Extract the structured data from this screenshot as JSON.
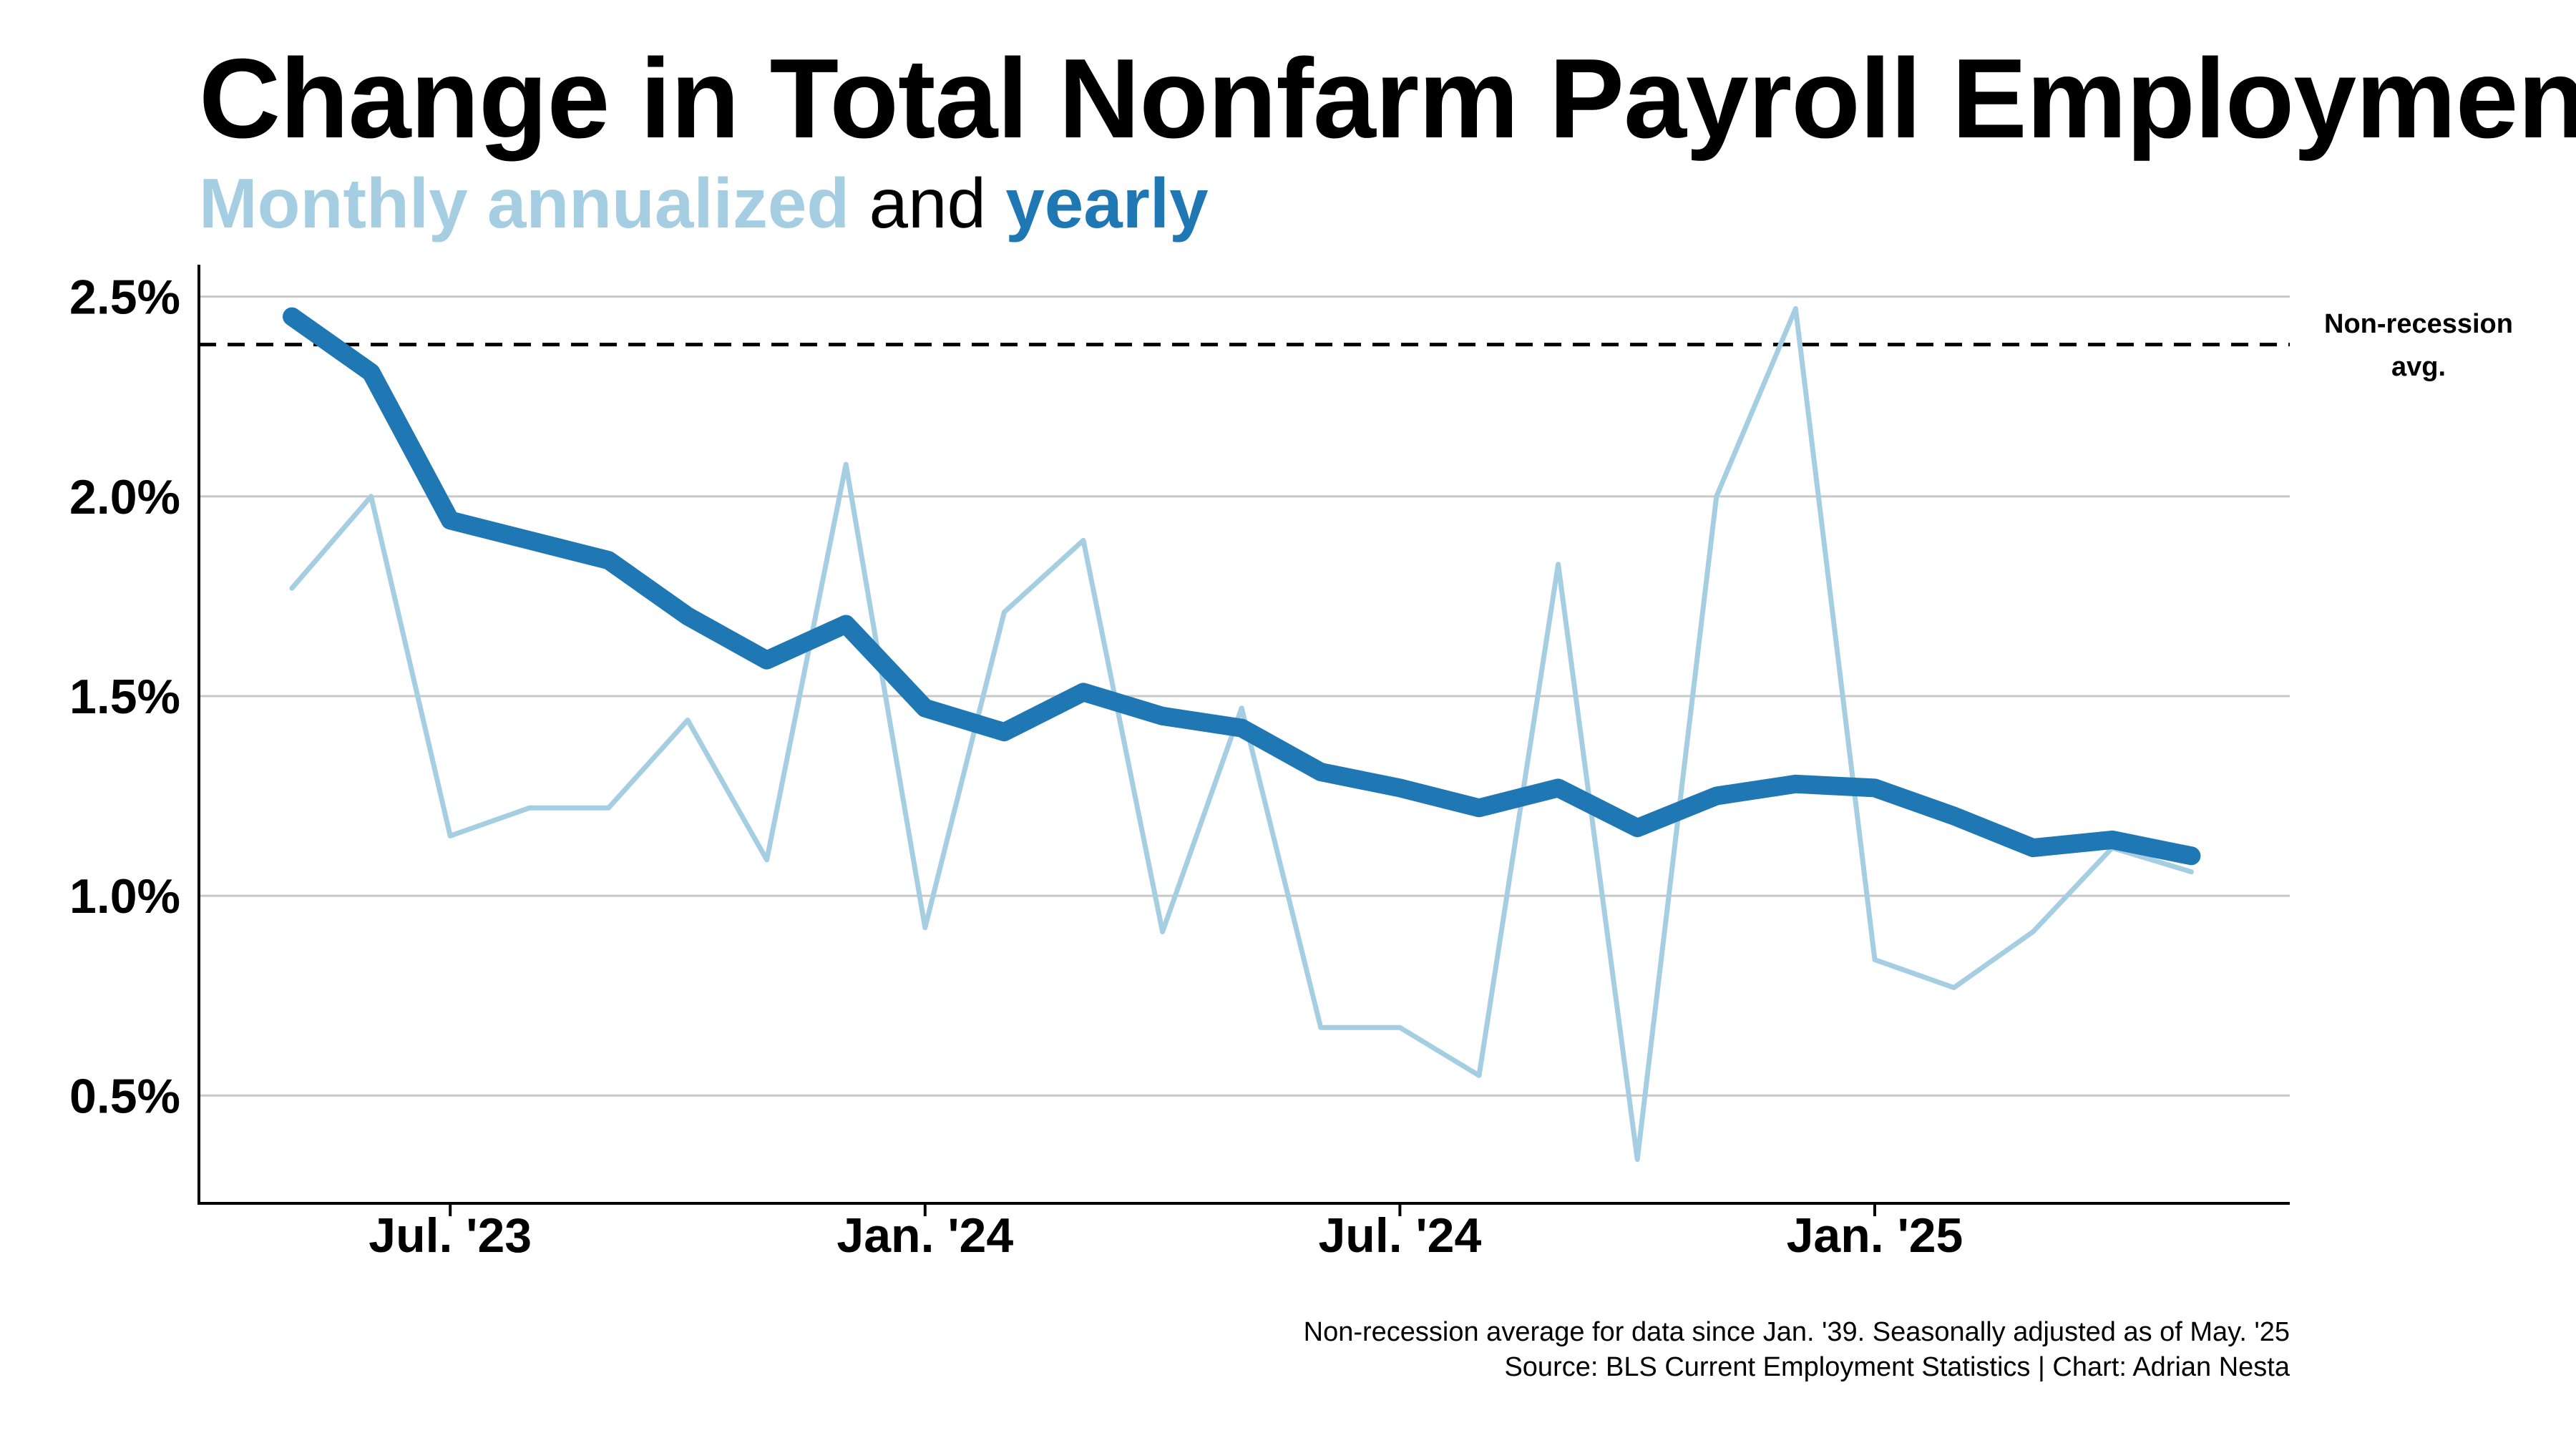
{
  "header": {
    "title": "Change in Total Nonfarm Payroll Employment",
    "subtitle_monthly": "Monthly annualized",
    "subtitle_and": "and",
    "subtitle_yearly": "yearly"
  },
  "colors": {
    "monthly": "#a6cee3",
    "yearly": "#1f78b4",
    "reference": "#000000",
    "grid": "#c8c8c8"
  },
  "chart_data": {
    "type": "line",
    "x": [
      "May '23",
      "Jun '23",
      "Jul '23",
      "Aug '23",
      "Sep '23",
      "Oct '23",
      "Nov '23",
      "Dec '23",
      "Jan '24",
      "Feb '24",
      "Mar '24",
      "Apr '24",
      "May '24",
      "Jun '24",
      "Jul '24",
      "Aug '24",
      "Sep '24",
      "Oct '24",
      "Nov '24",
      "Dec '24",
      "Jan '25",
      "Feb '25",
      "Mar '25",
      "Apr '25",
      "May '25"
    ],
    "series": [
      {
        "name": "Monthly annualized",
        "values": [
          1.77,
          2.0,
          1.15,
          1.22,
          1.22,
          1.44,
          1.09,
          2.08,
          0.92,
          1.71,
          1.89,
          0.91,
          1.47,
          0.67,
          0.67,
          0.55,
          1.83,
          0.34,
          2.0,
          2.47,
          0.84,
          0.77,
          0.91,
          1.12,
          1.06
        ]
      },
      {
        "name": "yearly",
        "values": [
          2.45,
          2.31,
          1.94,
          1.89,
          1.84,
          1.7,
          1.59,
          1.68,
          1.47,
          1.41,
          1.51,
          1.45,
          1.42,
          1.31,
          1.27,
          1.22,
          1.27,
          1.17,
          1.25,
          1.28,
          1.27,
          1.2,
          1.12,
          1.14,
          1.1
        ]
      }
    ],
    "reference_line": {
      "value": 2.38,
      "label_line1": "Non-recession",
      "label_line2": "avg."
    },
    "ylim": [
      0.23,
      2.58
    ],
    "yticks": [
      0.5,
      1.0,
      1.5,
      2.0,
      2.5
    ],
    "ytick_labels": [
      "0.5%",
      "1.0%",
      "1.5%",
      "2.0%",
      "2.5%"
    ],
    "xticks": [
      {
        "index": 2,
        "label": "Jul. '23"
      },
      {
        "index": 8,
        "label": "Jan. '24"
      },
      {
        "index": 14,
        "label": "Jul. '24"
      },
      {
        "index": 20,
        "label": "Jan. '25"
      }
    ],
    "grid": true,
    "xlabel": "",
    "ylabel": ""
  },
  "footer": {
    "note": "Non-recession average for data since Jan. '39. Seasonally adjusted as of May. '25",
    "source": "Source: BLS Current Employment Statistics | Chart: Adrian Nesta"
  }
}
